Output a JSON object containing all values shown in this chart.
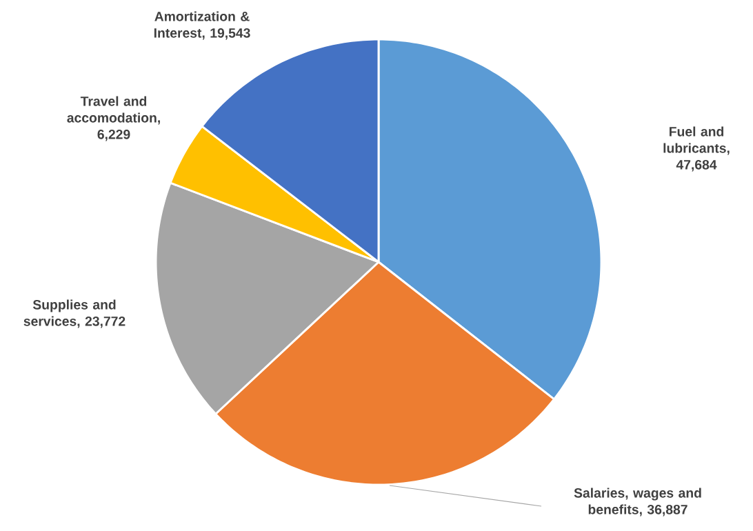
{
  "chart_data": {
    "type": "pie",
    "categories": [
      "Fuel and lubricants",
      "Salaries, wages and benefits",
      "Supplies and services",
      "Travel and accomodation",
      "Amortization & Interest"
    ],
    "values": [
      47684,
      36887,
      23772,
      6229,
      19543
    ],
    "value_labels": [
      ", 47,684",
      ", 36,887",
      ", 23,772",
      ", 6,229",
      ", 19,543"
    ],
    "colors": [
      "#5b9bd5",
      "#ed7d31",
      "#a5a5a5",
      "#ffc000",
      "#4472c4"
    ]
  }
}
